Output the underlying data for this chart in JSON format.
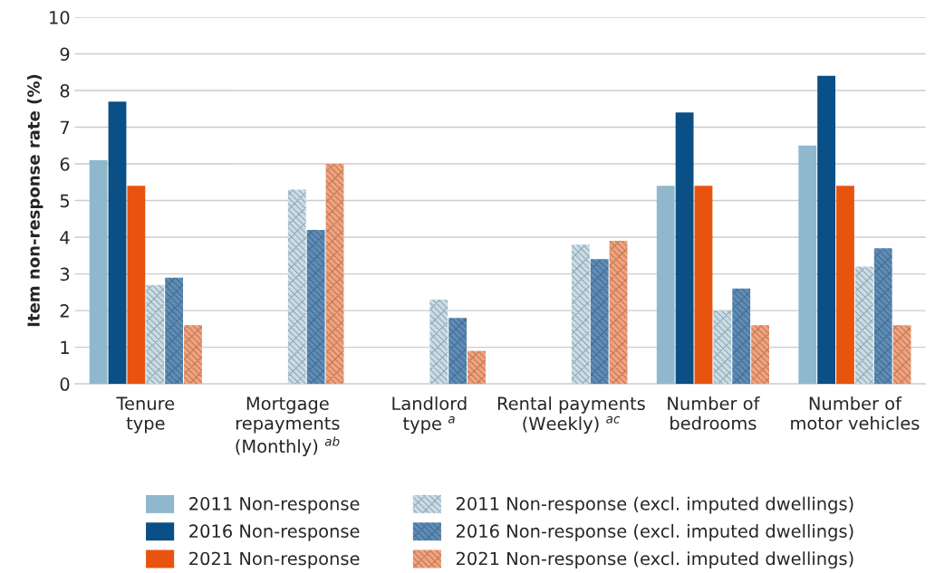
{
  "chart_data": {
    "type": "bar",
    "ylabel": "Item non-response rate (%)",
    "categories": [
      "Tenure\ntype",
      "Mortgage\nrepayments\n(Monthly) $^{ab}$",
      "Landlord\ntype $^{a}$",
      "Rental payments\n(Weekly) $^{ac}$",
      "Number of\nbedrooms",
      "Number of\nmotor vehicles"
    ],
    "series": [
      {
        "name": "2011 Non-response",
        "color": "#8fb8cc",
        "values": [
          6.1,
          null,
          null,
          null,
          5.4,
          6.5
        ]
      },
      {
        "name": "2016 Non-response",
        "color": "#0a4f85",
        "values": [
          7.7,
          null,
          null,
          null,
          7.4,
          8.4
        ]
      },
      {
        "name": "2021 Non-response",
        "color": "#e8540f",
        "values": [
          5.4,
          null,
          null,
          null,
          5.4,
          5.4
        ]
      },
      {
        "name": "2011 Non-response (excl. imputed dwellings)",
        "color": "#c8dde8",
        "values": [
          2.7,
          5.3,
          2.3,
          3.8,
          2.0,
          3.2
        ]
      },
      {
        "name": "2016 Non-response (excl. imputed dwellings)",
        "color": "#5d8db8",
        "values": [
          2.9,
          4.2,
          1.8,
          3.4,
          2.6,
          3.7
        ]
      },
      {
        "name": "2021 Non-response (excl. imputed dwellings)",
        "color": "#f4a27c",
        "values": [
          1.6,
          6.0,
          0.9,
          3.9,
          1.6,
          1.6
        ]
      }
    ],
    "ylim": [
      0,
      10
    ],
    "yticks": [
      0,
      1,
      2,
      3,
      4,
      5,
      6,
      7,
      8,
      9,
      10
    ],
    "grid": "y",
    "legend": "bottom"
  }
}
